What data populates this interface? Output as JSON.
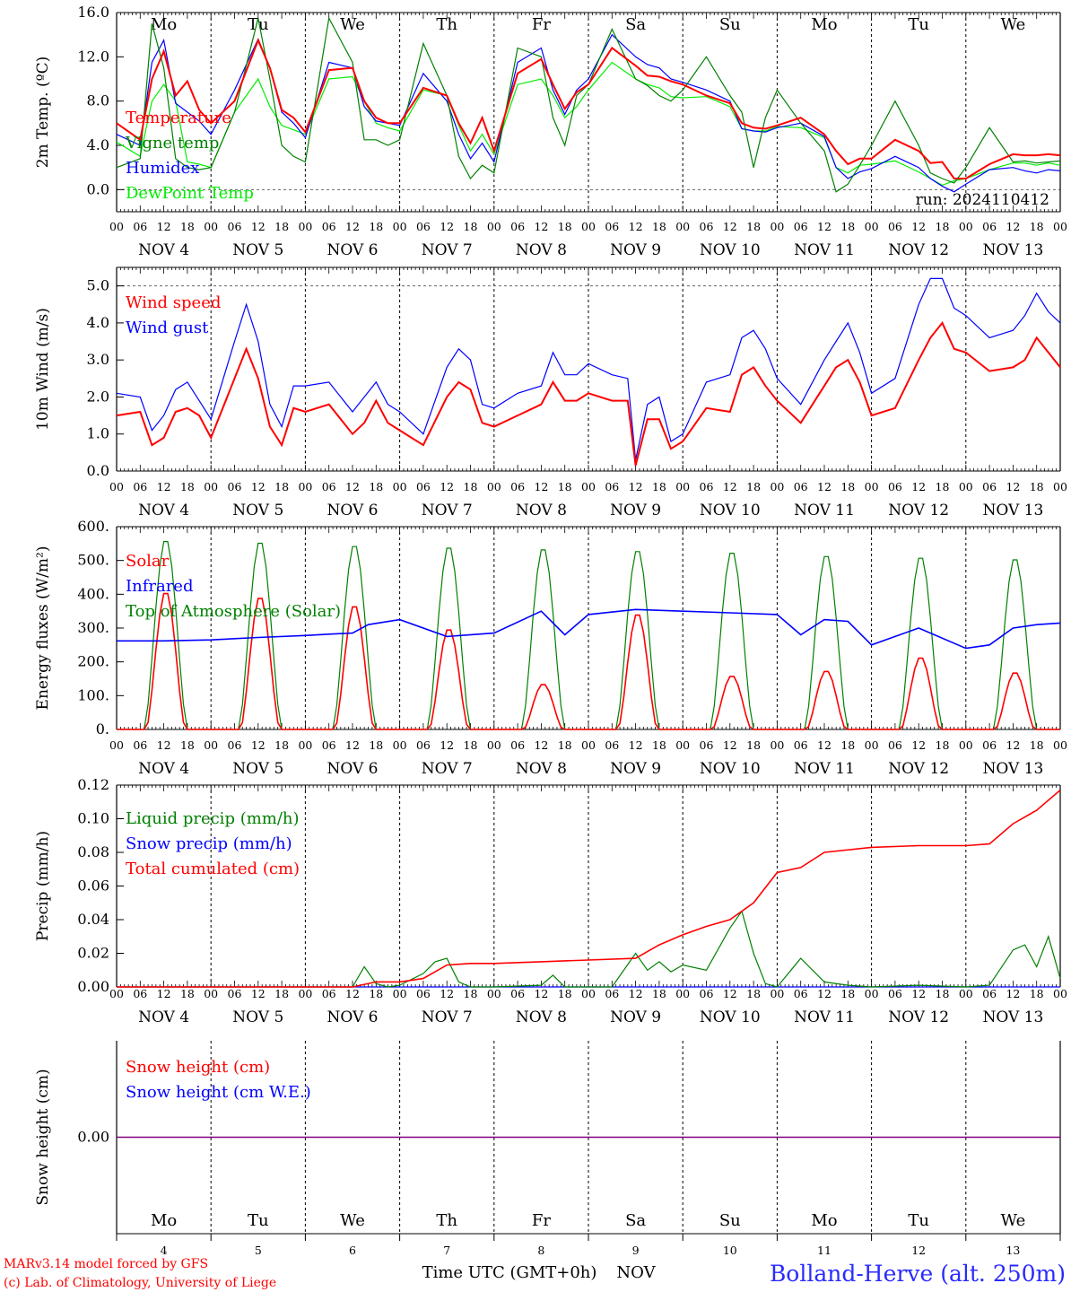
{
  "station": "Bolland-Herve (alt. 250m)",
  "run_label": "run: 2024110412",
  "credits": [
    "MARv3.14 model forced by GFS",
    "(c) Lab. of Climatology, University of Liege"
  ],
  "x_axis_title": "Time UTC (GMT+0h)",
  "month_label": "NOV",
  "hour_ticks": [
    "00",
    "06",
    "12",
    "18"
  ],
  "dates": [
    "NOV  4",
    "NOV  5",
    "NOV  6",
    "NOV  7",
    "NOV  8",
    "NOV  9",
    "NOV 10",
    "NOV 11",
    "NOV 12",
    "NOV 13"
  ],
  "date_numbers": [
    "4",
    "5",
    "6",
    "7",
    "8",
    "9",
    "10",
    "11",
    "12",
    "13"
  ],
  "days": [
    "Mo",
    "Tu",
    "We",
    "Th",
    "Fr",
    "Sa",
    "Su",
    "Mo",
    "Tu",
    "We"
  ],
  "weekend_days": [
    5,
    6
  ],
  "colors": {
    "red": "#ff0000",
    "blue": "#0000ff",
    "green": "#008000",
    "lightgreen": "#00ee00",
    "purple": "#800080",
    "day_black": "#000000",
    "weekend": "#ff0000",
    "station": "#2a2aff"
  },
  "chart_data": [
    {
      "type": "line",
      "ylabel": "2m Temp. (ºC)",
      "ylim": [
        -2,
        16
      ],
      "yticks": [
        "16.0",
        "12.0",
        "8.0",
        "4.0",
        "0.0"
      ],
      "ytick_values": [
        16,
        12,
        8,
        4,
        0
      ],
      "dashed_ref": [
        0,
        16
      ],
      "x": [
        0,
        6,
        9,
        12,
        15,
        18,
        21,
        24,
        30,
        36,
        39,
        42,
        45,
        48,
        54,
        60,
        63,
        66,
        69,
        72,
        78,
        84,
        87,
        90,
        93,
        96,
        102,
        108,
        111,
        114,
        117,
        120,
        126,
        132,
        135,
        138,
        141,
        144,
        150,
        156,
        159,
        162,
        165,
        168,
        174,
        180,
        183,
        186,
        189,
        192,
        198,
        204,
        207,
        210,
        213,
        216,
        222,
        228,
        231,
        234,
        237,
        240
      ],
      "series": [
        {
          "name": "Temperature",
          "color": "#ff0000",
          "values": [
            6.0,
            4.5,
            10.0,
            12.5,
            8.5,
            9.8,
            7.2,
            6.0,
            8.0,
            13.5,
            11.0,
            7.2,
            6.5,
            5.2,
            10.8,
            11.0,
            8.0,
            6.5,
            6.0,
            6.0,
            9.2,
            8.5,
            6.0,
            4.2,
            6.5,
            3.5,
            10.5,
            11.8,
            9.5,
            7.3,
            8.8,
            9.5,
            12.8,
            11.2,
            10.3,
            10.2,
            9.8,
            9.5,
            8.5,
            7.8,
            6.0,
            5.6,
            5.5,
            5.8,
            6.5,
            5.0,
            3.5,
            2.3,
            2.8,
            2.8,
            4.5,
            3.5,
            2.4,
            2.5,
            1.0,
            1.0,
            2.3,
            3.2,
            3.1,
            3.1,
            3.2,
            3.1
          ]
        },
        {
          "name": "Vigne temp",
          "color": "#008000",
          "values": [
            2.0,
            2.8,
            15.0,
            11.0,
            2.8,
            2.0,
            1.8,
            2.0,
            7.0,
            15.5,
            10.0,
            4.0,
            3.0,
            2.5,
            15.5,
            11.5,
            4.5,
            4.5,
            4.0,
            4.5,
            13.2,
            8.5,
            3.0,
            1.0,
            2.2,
            1.5,
            12.8,
            12.0,
            6.5,
            4.0,
            8.5,
            9.5,
            14.5,
            10.0,
            9.4,
            8.5,
            8.0,
            9.0,
            12.0,
            8.5,
            7.0,
            2.0,
            6.5,
            9.0,
            6.0,
            3.5,
            -0.2,
            0.5,
            2.2,
            4.0,
            8.0,
            4.0,
            1.5,
            1.0,
            0.6,
            2.0,
            5.6,
            2.5,
            2.6,
            2.4,
            2.5,
            2.6
          ]
        },
        {
          "name": "Humidex",
          "color": "#0000ff",
          "values": [
            5.0,
            4.0,
            11.5,
            13.5,
            7.8,
            7.0,
            6.2,
            5.0,
            9.0,
            13.6,
            11.0,
            7.0,
            6.0,
            4.7,
            11.5,
            11.0,
            7.5,
            6.2,
            6.0,
            5.8,
            10.5,
            8.0,
            5.0,
            2.8,
            4.2,
            2.5,
            11.5,
            12.8,
            9.0,
            6.8,
            9.0,
            10.0,
            14.0,
            12.0,
            11.3,
            11.0,
            10.0,
            9.7,
            9.0,
            8.0,
            5.5,
            5.3,
            5.2,
            5.6,
            6.0,
            4.8,
            2.0,
            1.0,
            1.6,
            1.9,
            3.0,
            2.0,
            1.0,
            0.3,
            -0.2,
            0.5,
            1.8,
            2.0,
            1.7,
            1.5,
            1.8,
            1.7
          ]
        },
        {
          "name": "DewPoint Temp",
          "color": "#00ee00",
          "values": [
            4.3,
            3.0,
            8.0,
            9.5,
            8.0,
            2.5,
            2.3,
            2.0,
            7.0,
            10.0,
            7.5,
            5.8,
            5.4,
            5.0,
            10.0,
            10.2,
            8.0,
            6.0,
            5.6,
            5.3,
            9.0,
            8.5,
            5.8,
            3.5,
            5.0,
            3.2,
            9.5,
            10.0,
            8.5,
            6.5,
            7.5,
            9.0,
            11.5,
            10.0,
            9.5,
            9.2,
            8.4,
            8.3,
            8.4,
            7.5,
            5.5,
            5.3,
            5.3,
            5.7,
            5.6,
            4.7,
            2.0,
            1.5,
            2.2,
            2.3,
            2.6,
            1.6,
            1.0,
            0.4,
            0.8,
            1.0,
            1.8,
            2.4,
            2.4,
            2.2,
            2.4,
            2.2
          ]
        }
      ]
    },
    {
      "type": "line",
      "ylabel": "10m Wind (m/s)",
      "ylim": [
        0,
        5.5
      ],
      "yticks": [
        "5.0",
        "4.0",
        "3.0",
        "2.0",
        "1.0",
        "0.0"
      ],
      "ytick_values": [
        5,
        4,
        3,
        2,
        1,
        0
      ],
      "dashed_ref": [
        5
      ],
      "x": [
        0,
        6,
        9,
        12,
        15,
        18,
        21,
        24,
        30,
        33,
        36,
        39,
        42,
        45,
        48,
        54,
        60,
        63,
        66,
        69,
        72,
        78,
        84,
        87,
        90,
        93,
        96,
        102,
        108,
        111,
        114,
        117,
        120,
        126,
        130,
        132,
        135,
        138,
        141,
        144,
        150,
        156,
        159,
        162,
        165,
        168,
        174,
        180,
        183,
        186,
        189,
        192,
        198,
        204,
        207,
        210,
        213,
        216,
        222,
        228,
        231,
        234,
        237,
        240
      ],
      "series": [
        {
          "name": "Wind speed",
          "color": "#ff0000",
          "values": [
            1.5,
            1.6,
            0.7,
            0.9,
            1.6,
            1.7,
            1.5,
            0.9,
            2.5,
            3.3,
            2.5,
            1.2,
            0.7,
            1.7,
            1.6,
            1.8,
            1.0,
            1.3,
            1.9,
            1.3,
            1.1,
            0.7,
            2.0,
            2.4,
            2.2,
            1.3,
            1.2,
            1.5,
            1.8,
            2.4,
            1.9,
            1.9,
            2.1,
            1.9,
            1.9,
            0.15,
            1.4,
            1.4,
            0.6,
            0.8,
            1.7,
            1.6,
            2.6,
            2.8,
            2.3,
            1.9,
            1.3,
            2.3,
            2.8,
            3.0,
            2.4,
            1.5,
            1.7,
            3.0,
            3.6,
            4.0,
            3.3,
            3.2,
            2.7,
            2.8,
            3.0,
            3.6,
            3.2,
            2.8
          ]
        },
        {
          "name": "Wind gust",
          "color": "#0000ff",
          "values": [
            2.1,
            2.0,
            1.1,
            1.5,
            2.2,
            2.4,
            1.9,
            1.4,
            3.5,
            4.5,
            3.5,
            1.8,
            1.2,
            2.3,
            2.3,
            2.4,
            1.6,
            2.0,
            2.4,
            1.8,
            1.6,
            1.0,
            2.8,
            3.3,
            3.0,
            1.8,
            1.7,
            2.1,
            2.3,
            3.2,
            2.6,
            2.6,
            2.9,
            2.6,
            2.5,
            0.3,
            1.8,
            2.0,
            0.8,
            1.0,
            2.4,
            2.6,
            3.6,
            3.8,
            3.3,
            2.5,
            1.8,
            3.0,
            3.5,
            4.0,
            3.2,
            2.1,
            2.5,
            4.5,
            5.2,
            5.2,
            4.4,
            4.2,
            3.6,
            3.8,
            4.2,
            4.8,
            4.3,
            4.0
          ]
        }
      ]
    },
    {
      "type": "line",
      "ylabel": "Energy fluxes (W/m²)",
      "ylim": [
        0,
        600
      ],
      "yticks": [
        "600.",
        "500.",
        "400.",
        "300.",
        "200.",
        "100.",
        "0."
      ],
      "ytick_values": [
        600,
        500,
        400,
        300,
        200,
        100,
        0
      ],
      "dashed_ref": [],
      "solar_peaks": [
        410,
        395,
        370,
        300,
        135,
        345,
        160,
        175,
        215,
        170
      ],
      "toa_peaks": [
        565,
        560,
        550,
        545,
        540,
        535,
        530,
        520,
        515,
        510
      ],
      "infrared_x": [
        0,
        12,
        24,
        36,
        48,
        54,
        60,
        64,
        72,
        84,
        96,
        108,
        114,
        120,
        132,
        144,
        156,
        168,
        174,
        180,
        186,
        192,
        204,
        216,
        222,
        228,
        234,
        240
      ],
      "infrared_values": [
        262,
        262,
        265,
        272,
        278,
        282,
        285,
        310,
        325,
        275,
        285,
        350,
        280,
        340,
        355,
        350,
        345,
        340,
        280,
        325,
        320,
        250,
        300,
        240,
        250,
        300,
        310,
        315
      ],
      "series": [
        {
          "name": "Solar",
          "color": "#ff0000"
        },
        {
          "name": "Infrared",
          "color": "#0000ff"
        },
        {
          "name": "Top of Atmosphere (Solar)",
          "color": "#008000"
        }
      ]
    },
    {
      "type": "line",
      "ylabel": "Precip (mm/h)",
      "ylim": [
        0,
        0.12
      ],
      "yticks": [
        "0.12",
        "0.10",
        "0.08",
        "0.06",
        "0.04",
        "0.02",
        "0.00"
      ],
      "ytick_values": [
        0.12,
        0.1,
        0.08,
        0.06,
        0.04,
        0.02,
        0
      ],
      "dashed_ref": [],
      "liquid_x": [
        0,
        60,
        63,
        66,
        69,
        72,
        78,
        81,
        84,
        87,
        90,
        96,
        108,
        111,
        114,
        126,
        132,
        135,
        138,
        141,
        144,
        150,
        156,
        159,
        162,
        165,
        168,
        174,
        180,
        186,
        192,
        204,
        216,
        222,
        228,
        231,
        234,
        237,
        240
      ],
      "liquid_values": [
        0,
        0,
        0.012,
        0.002,
        0,
        0.001,
        0.008,
        0.015,
        0.017,
        0.003,
        0,
        0,
        0.001,
        0.007,
        0,
        0,
        0.02,
        0.01,
        0.015,
        0.009,
        0.013,
        0.01,
        0.035,
        0.045,
        0.02,
        0.002,
        0,
        0.017,
        0.003,
        0.001,
        0,
        0.001,
        0,
        0.001,
        0.022,
        0.025,
        0.012,
        0.03,
        0.005
      ],
      "cumul_x": [
        0,
        60,
        66,
        72,
        78,
        84,
        90,
        96,
        108,
        120,
        132,
        138,
        144,
        150,
        156,
        162,
        168,
        174,
        180,
        192,
        204,
        216,
        222,
        228,
        234,
        240
      ],
      "cumul_values": [
        0,
        0,
        0.003,
        0.003,
        0.005,
        0.013,
        0.014,
        0.014,
        0.015,
        0.016,
        0.017,
        0.025,
        0.031,
        0.036,
        0.04,
        0.05,
        0.068,
        0.071,
        0.08,
        0.083,
        0.084,
        0.084,
        0.085,
        0.097,
        0.105,
        0.117
      ],
      "series": [
        {
          "name": "Liquid precip (mm/h)",
          "color": "#008000"
        },
        {
          "name": "Snow precip (mm/h)",
          "color": "#0000ff"
        },
        {
          "name": "Total cumulated (cm)",
          "color": "#ff0000"
        }
      ]
    },
    {
      "type": "line",
      "ylabel": "Snow height (cm)",
      "ylim": [
        -1,
        1
      ],
      "yticks": [
        "0.00"
      ],
      "ytick_values": [
        0
      ],
      "dashed_ref": [],
      "series": [
        {
          "name": "Snow height (cm)",
          "color": "#ff0000",
          "values": [
            0
          ]
        },
        {
          "name": "Snow height (cm W.E.)",
          "color": "#0000ff",
          "values": [
            0
          ]
        }
      ]
    }
  ]
}
